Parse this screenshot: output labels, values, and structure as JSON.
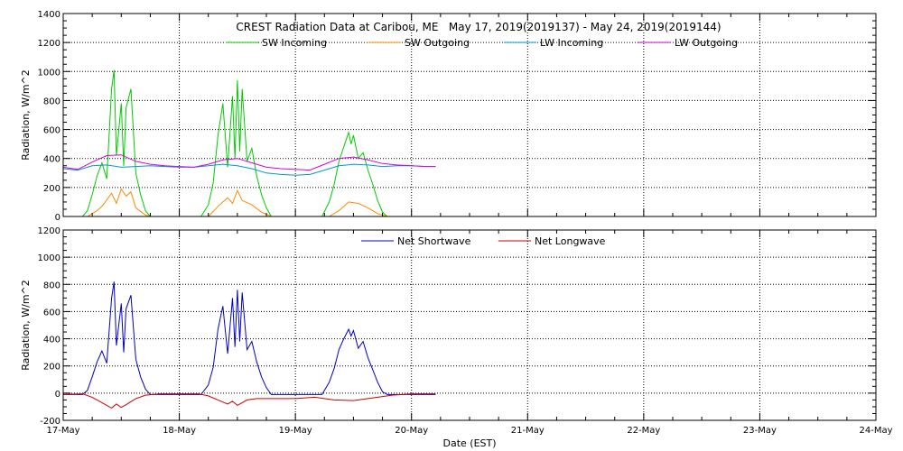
{
  "chart_data": [
    {
      "type": "line",
      "title": "CREST Radiation Data at Caribou, ME   May 17, 2019(2019137) - May 24, 2019(2019144)",
      "xlabel": "",
      "ylabel": "Radiation, W/m^2",
      "xlim": [
        "2019-05-17",
        "2019-05-24"
      ],
      "ylim": [
        0,
        1400
      ],
      "yticks": [
        0,
        200,
        400,
        600,
        800,
        1000,
        1200,
        1400
      ],
      "grid": true,
      "legend": "top",
      "series": [
        {
          "name": "SW Incoming",
          "color": "#00cc00",
          "points": [
            [
              "2019-05-17 00:00",
              0
            ],
            [
              "2019-05-17 04:00",
              0
            ],
            [
              "2019-05-17 05:00",
              40
            ],
            [
              "2019-05-17 06:00",
              150
            ],
            [
              "2019-05-17 07:00",
              280
            ],
            [
              "2019-05-17 08:00",
              370
            ],
            [
              "2019-05-17 09:00",
              260
            ],
            [
              "2019-05-17 10:00",
              880
            ],
            [
              "2019-05-17 10:30",
              1010
            ],
            [
              "2019-05-17 11:00",
              420
            ],
            [
              "2019-05-17 12:00",
              780
            ],
            [
              "2019-05-17 12:30",
              350
            ],
            [
              "2019-05-17 13:00",
              750
            ],
            [
              "2019-05-17 14:00",
              880
            ],
            [
              "2019-05-17 15:00",
              300
            ],
            [
              "2019-05-17 16:00",
              150
            ],
            [
              "2019-05-17 17:00",
              40
            ],
            [
              "2019-05-17 18:00",
              0
            ],
            [
              "2019-05-18 04:30",
              0
            ],
            [
              "2019-05-18 06:00",
              80
            ],
            [
              "2019-05-18 07:00",
              230
            ],
            [
              "2019-05-18 08:00",
              560
            ],
            [
              "2019-05-18 09:00",
              780
            ],
            [
              "2019-05-18 10:00",
              340
            ],
            [
              "2019-05-18 11:00",
              830
            ],
            [
              "2019-05-18 11:30",
              400
            ],
            [
              "2019-05-18 12:00",
              940
            ],
            [
              "2019-05-18 12:30",
              450
            ],
            [
              "2019-05-18 13:00",
              880
            ],
            [
              "2019-05-18 14:00",
              380
            ],
            [
              "2019-05-18 15:00",
              470
            ],
            [
              "2019-05-18 16:00",
              280
            ],
            [
              "2019-05-18 17:00",
              150
            ],
            [
              "2019-05-18 18:00",
              60
            ],
            [
              "2019-05-18 19:00",
              0
            ],
            [
              "2019-05-19 05:30",
              0
            ],
            [
              "2019-05-19 07:00",
              100
            ],
            [
              "2019-05-19 08:00",
              220
            ],
            [
              "2019-05-19 09:00",
              380
            ],
            [
              "2019-05-19 10:00",
              480
            ],
            [
              "2019-05-19 11:00",
              580
            ],
            [
              "2019-05-19 11:30",
              500
            ],
            [
              "2019-05-19 12:00",
              560
            ],
            [
              "2019-05-19 13:00",
              400
            ],
            [
              "2019-05-19 14:00",
              440
            ],
            [
              "2019-05-19 15:00",
              320
            ],
            [
              "2019-05-19 16:00",
              220
            ],
            [
              "2019-05-19 17:00",
              110
            ],
            [
              "2019-05-19 18:00",
              30
            ],
            [
              "2019-05-19 19:00",
              0
            ]
          ]
        },
        {
          "name": "SW Outgoing",
          "color": "#ff8800",
          "points": [
            [
              "2019-05-17 00:00",
              0
            ],
            [
              "2019-05-17 05:00",
              0
            ],
            [
              "2019-05-17 07:00",
              40
            ],
            [
              "2019-05-17 08:00",
              70
            ],
            [
              "2019-05-17 10:00",
              160
            ],
            [
              "2019-05-17 11:00",
              90
            ],
            [
              "2019-05-17 12:00",
              190
            ],
            [
              "2019-05-17 13:00",
              140
            ],
            [
              "2019-05-17 14:00",
              170
            ],
            [
              "2019-05-17 15:00",
              60
            ],
            [
              "2019-05-17 17:00",
              10
            ],
            [
              "2019-05-17 18:00",
              0
            ],
            [
              "2019-05-18 06:00",
              0
            ],
            [
              "2019-05-18 08:00",
              70
            ],
            [
              "2019-05-18 10:00",
              130
            ],
            [
              "2019-05-18 11:00",
              90
            ],
            [
              "2019-05-18 12:00",
              180
            ],
            [
              "2019-05-18 13:00",
              110
            ],
            [
              "2019-05-18 15:00",
              80
            ],
            [
              "2019-05-18 17:00",
              30
            ],
            [
              "2019-05-18 19:00",
              0
            ],
            [
              "2019-05-19 07:00",
              0
            ],
            [
              "2019-05-19 09:00",
              40
            ],
            [
              "2019-05-19 11:00",
              100
            ],
            [
              "2019-05-19 13:00",
              90
            ],
            [
              "2019-05-19 15:00",
              60
            ],
            [
              "2019-05-19 17:00",
              20
            ],
            [
              "2019-05-19 19:00",
              0
            ]
          ]
        },
        {
          "name": "LW Incoming",
          "color": "#0099cc",
          "points": [
            [
              "2019-05-17 00:00",
              330
            ],
            [
              "2019-05-17 03:00",
              320
            ],
            [
              "2019-05-17 06:00",
              350
            ],
            [
              "2019-05-17 09:00",
              355
            ],
            [
              "2019-05-17 12:00",
              340
            ],
            [
              "2019-05-17 15:00",
              345
            ],
            [
              "2019-05-17 18:00",
              350
            ],
            [
              "2019-05-17 21:00",
              345
            ],
            [
              "2019-05-18 00:00",
              340
            ],
            [
              "2019-05-18 03:00",
              340
            ],
            [
              "2019-05-18 06:00",
              350
            ],
            [
              "2019-05-18 09:00",
              360
            ],
            [
              "2019-05-18 12:00",
              350
            ],
            [
              "2019-05-18 15:00",
              330
            ],
            [
              "2019-05-18 18:00",
              300
            ],
            [
              "2019-05-18 21:00",
              290
            ],
            [
              "2019-05-19 00:00",
              285
            ],
            [
              "2019-05-19 03:00",
              290
            ],
            [
              "2019-05-19 06:00",
              320
            ],
            [
              "2019-05-19 09:00",
              350
            ],
            [
              "2019-05-19 12:00",
              360
            ],
            [
              "2019-05-19 15:00",
              355
            ],
            [
              "2019-05-19 18:00",
              345
            ],
            [
              "2019-05-19 21:00",
              350
            ],
            [
              "2019-05-20 00:00",
              350
            ],
            [
              "2019-05-20 03:00",
              345
            ],
            [
              "2019-05-20 05:00",
              345
            ]
          ]
        },
        {
          "name": "LW Outgoing",
          "color": "#dd00dd",
          "points": [
            [
              "2019-05-17 00:00",
              340
            ],
            [
              "2019-05-17 03:00",
              325
            ],
            [
              "2019-05-17 06:00",
              375
            ],
            [
              "2019-05-17 09:00",
              420
            ],
            [
              "2019-05-17 12:00",
              425
            ],
            [
              "2019-05-17 15:00",
              380
            ],
            [
              "2019-05-17 18:00",
              360
            ],
            [
              "2019-05-17 21:00",
              350
            ],
            [
              "2019-05-18 00:00",
              345
            ],
            [
              "2019-05-18 03:00",
              340
            ],
            [
              "2019-05-18 06:00",
              360
            ],
            [
              "2019-05-18 09:00",
              390
            ],
            [
              "2019-05-18 12:00",
              400
            ],
            [
              "2019-05-18 15:00",
              370
            ],
            [
              "2019-05-18 18:00",
              340
            ],
            [
              "2019-05-18 21:00",
              330
            ],
            [
              "2019-05-19 00:00",
              325
            ],
            [
              "2019-05-19 03:00",
              320
            ],
            [
              "2019-05-19 06:00",
              360
            ],
            [
              "2019-05-19 09:00",
              400
            ],
            [
              "2019-05-19 12:00",
              410
            ],
            [
              "2019-05-19 15:00",
              390
            ],
            [
              "2019-05-19 18:00",
              365
            ],
            [
              "2019-05-19 21:00",
              355
            ],
            [
              "2019-05-20 00:00",
              350
            ],
            [
              "2019-05-20 03:00",
              345
            ],
            [
              "2019-05-20 05:00",
              345
            ]
          ]
        }
      ]
    },
    {
      "type": "line",
      "title": "",
      "xlabel": "Date (EST)",
      "ylabel": "Radiation, W/m^2",
      "xlim": [
        "2019-05-17",
        "2019-05-24"
      ],
      "xticks": [
        "17-May",
        "18-May",
        "19-May",
        "20-May",
        "21-May",
        "22-May",
        "23-May",
        "24-May"
      ],
      "ylim": [
        -200,
        1200
      ],
      "yticks": [
        -200,
        0,
        200,
        400,
        600,
        800,
        1000,
        1200
      ],
      "grid": true,
      "legend": "top",
      "series": [
        {
          "name": "Net Shortwave",
          "color": "#0000cc",
          "points": [
            [
              "2019-05-17 00:00",
              -10
            ],
            [
              "2019-05-17 04:00",
              -10
            ],
            [
              "2019-05-17 05:00",
              20
            ],
            [
              "2019-05-17 06:00",
              120
            ],
            [
              "2019-05-17 07:00",
              230
            ],
            [
              "2019-05-17 08:00",
              310
            ],
            [
              "2019-05-17 09:00",
              220
            ],
            [
              "2019-05-17 10:00",
              700
            ],
            [
              "2019-05-17 10:30",
              820
            ],
            [
              "2019-05-17 11:00",
              350
            ],
            [
              "2019-05-17 12:00",
              660
            ],
            [
              "2019-05-17 12:30",
              300
            ],
            [
              "2019-05-17 13:00",
              620
            ],
            [
              "2019-05-17 14:00",
              720
            ],
            [
              "2019-05-17 15:00",
              250
            ],
            [
              "2019-05-17 16:00",
              120
            ],
            [
              "2019-05-17 17:00",
              30
            ],
            [
              "2019-05-17 18:00",
              -10
            ],
            [
              "2019-05-18 04:30",
              -10
            ],
            [
              "2019-05-18 06:00",
              60
            ],
            [
              "2019-05-18 07:00",
              190
            ],
            [
              "2019-05-18 08:00",
              470
            ],
            [
              "2019-05-18 09:00",
              640
            ],
            [
              "2019-05-18 10:00",
              290
            ],
            [
              "2019-05-18 11:00",
              700
            ],
            [
              "2019-05-18 11:30",
              340
            ],
            [
              "2019-05-18 12:00",
              760
            ],
            [
              "2019-05-18 12:30",
              380
            ],
            [
              "2019-05-18 13:00",
              740
            ],
            [
              "2019-05-18 14:00",
              320
            ],
            [
              "2019-05-18 15:00",
              380
            ],
            [
              "2019-05-18 16:00",
              230
            ],
            [
              "2019-05-18 17:00",
              120
            ],
            [
              "2019-05-18 18:00",
              40
            ],
            [
              "2019-05-18 19:00",
              -10
            ],
            [
              "2019-05-19 05:30",
              -10
            ],
            [
              "2019-05-19 07:00",
              80
            ],
            [
              "2019-05-19 08:00",
              180
            ],
            [
              "2019-05-19 09:00",
              320
            ],
            [
              "2019-05-19 10:00",
              400
            ],
            [
              "2019-05-19 11:00",
              470
            ],
            [
              "2019-05-19 11:30",
              420
            ],
            [
              "2019-05-19 12:00",
              460
            ],
            [
              "2019-05-19 13:00",
              330
            ],
            [
              "2019-05-19 14:00",
              380
            ],
            [
              "2019-05-19 15:00",
              260
            ],
            [
              "2019-05-19 16:00",
              170
            ],
            [
              "2019-05-19 17:00",
              80
            ],
            [
              "2019-05-19 18:00",
              10
            ],
            [
              "2019-05-19 19:00",
              -10
            ],
            [
              "2019-05-20 05:00",
              -10
            ]
          ]
        },
        {
          "name": "Net Longwave",
          "color": "#cc0000",
          "points": [
            [
              "2019-05-17 00:00",
              -10
            ],
            [
              "2019-05-17 04:00",
              -5
            ],
            [
              "2019-05-17 06:00",
              -30
            ],
            [
              "2019-05-17 08:00",
              -70
            ],
            [
              "2019-05-17 10:00",
              -110
            ],
            [
              "2019-05-17 11:00",
              -80
            ],
            [
              "2019-05-17 12:00",
              -105
            ],
            [
              "2019-05-17 13:00",
              -85
            ],
            [
              "2019-05-17 15:00",
              -40
            ],
            [
              "2019-05-17 17:00",
              -15
            ],
            [
              "2019-05-17 20:00",
              -5
            ],
            [
              "2019-05-18 04:00",
              -5
            ],
            [
              "2019-05-18 06:00",
              -20
            ],
            [
              "2019-05-18 08:00",
              -50
            ],
            [
              "2019-05-18 10:00",
              -80
            ],
            [
              "2019-05-18 11:00",
              -60
            ],
            [
              "2019-05-18 12:00",
              -90
            ],
            [
              "2019-05-18 14:00",
              -50
            ],
            [
              "2019-05-18 16:00",
              -40
            ],
            [
              "2019-05-18 19:00",
              -40
            ],
            [
              "2019-05-19 00:00",
              -40
            ],
            [
              "2019-05-19 04:00",
              -30
            ],
            [
              "2019-05-19 08:00",
              -50
            ],
            [
              "2019-05-19 12:00",
              -55
            ],
            [
              "2019-05-19 16:00",
              -35
            ],
            [
              "2019-05-19 20:00",
              -15
            ],
            [
              "2019-05-20 00:00",
              -5
            ],
            [
              "2019-05-20 05:00",
              -5
            ]
          ]
        }
      ]
    }
  ]
}
